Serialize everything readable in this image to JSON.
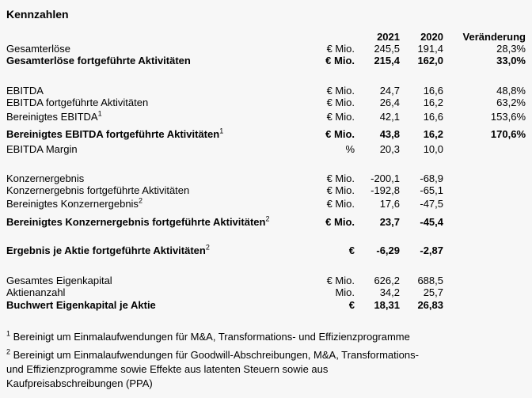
{
  "page": {
    "background": "#f7f7f7",
    "text_color": "#000000"
  },
  "title": "Kennzahlen",
  "table": {
    "header": {
      "col_2021": "2021",
      "col_2020": "2020",
      "col_change": "Veränderung"
    },
    "rows": [
      {
        "label": "Gesamterlöse",
        "unit": "€ Mio.",
        "y2021": "245,5",
        "y2020": "191,4",
        "change": "28,3%"
      },
      {
        "label": "Gesamterlöse fortgeführte Aktivitäten",
        "unit": "€ Mio.",
        "y2021": "215,4",
        "y2020": "162,0",
        "change": "33,0%"
      },
      {
        "label": "EBITDA",
        "unit": "€ Mio.",
        "y2021": "24,7",
        "y2020": "16,6",
        "change": "48,8%"
      },
      {
        "label": "EBITDA fortgeführte Aktivitäten",
        "unit": "€ Mio.",
        "y2021": "26,4",
        "y2020": "16,2",
        "change": "63,2%"
      },
      {
        "label": "Bereinigtes EBITDA",
        "sup": "1",
        "unit": "€ Mio.",
        "y2021": "42,1",
        "y2020": "16,6",
        "change": "153,6%"
      },
      {
        "label": "Bereinigtes EBITDA fortgeführte Aktivitäten",
        "sup": "1",
        "unit": "€ Mio.",
        "y2021": "43,8",
        "y2020": "16,2",
        "change": "170,6%"
      },
      {
        "label": "EBITDA Margin",
        "unit": "%",
        "y2021": "20,3",
        "y2020": "10,0",
        "change": ""
      },
      {
        "label": "Konzernergebnis",
        "unit": "€ Mio.",
        "y2021": "-200,1",
        "y2020": "-68,9",
        "change": ""
      },
      {
        "label": "Konzernergebnis fortgeführte Aktivitäten",
        "unit": "€ Mio.",
        "y2021": "-192,8",
        "y2020": "-65,1",
        "change": ""
      },
      {
        "label": "Bereinigtes Konzernergebnis",
        "sup": "2",
        "unit": "€ Mio.",
        "y2021": "17,6",
        "y2020": "-47,5",
        "change": ""
      },
      {
        "label": "Bereinigtes Konzernergebnis fortgeführte Aktivitäten",
        "sup": "2",
        "unit": "€ Mio.",
        "y2021": "23,7",
        "y2020": "-45,4",
        "change": ""
      },
      {
        "label": "Ergebnis je Aktie fortgeführte Aktivitäten",
        "sup": "2",
        "unit": "€",
        "y2021": "-6,29",
        "y2020": "-2,87",
        "change": ""
      },
      {
        "label": "Gesamtes Eigenkapital",
        "unit": "€ Mio.",
        "y2021": "626,2",
        "y2020": "688,5",
        "change": ""
      },
      {
        "label": "Aktienanzahl",
        "unit": "Mio.",
        "y2021": "34,2",
        "y2020": "25,7",
        "change": ""
      },
      {
        "label": "Buchwert Eigenkapital je Aktie",
        "unit": "€",
        "y2021": "18,31",
        "y2020": "26,83",
        "change": ""
      }
    ]
  },
  "footnotes": [
    {
      "marker": "1",
      "lines": [
        "Bereinigt um Einmalaufwendungen für M&A, Transformations- und Effizienzprogramme"
      ]
    },
    {
      "marker": "2",
      "lines": [
        "Bereinigt um Einmalaufwendungen für Goodwill-Abschreibungen, M&A, Transformations-",
        "und Effizienzprogramme sowie Effekte aus latenten Steuern sowie aus",
        "Kaufpreisabschreibungen (PPA)"
      ]
    }
  ]
}
